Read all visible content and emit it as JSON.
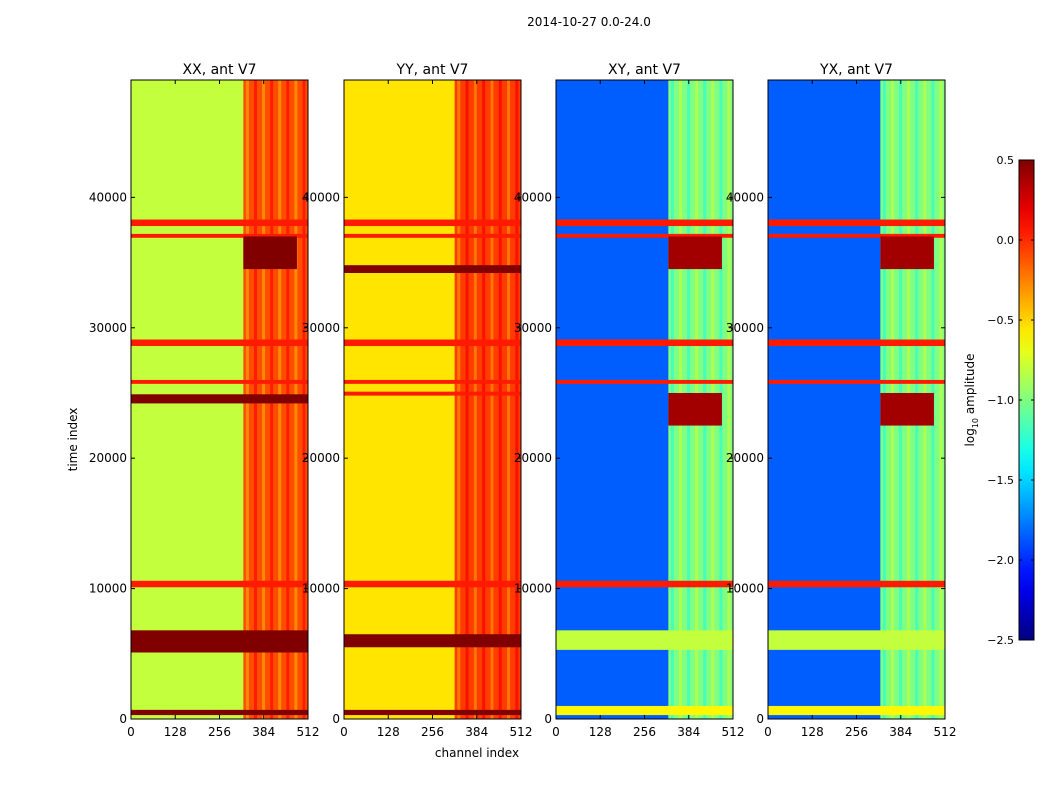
{
  "figure": {
    "suptitle": "2014-10-27 0.0-24.0"
  },
  "chart_data": [
    {
      "type": "heatmap",
      "title": "XX, ant V7",
      "xlabel": "",
      "ylabel": "time index",
      "xlim": [
        0,
        512
      ],
      "ylim": [
        0,
        49000
      ],
      "xticks": [
        0,
        128,
        256,
        384,
        512
      ],
      "yticks": [
        0,
        10000,
        20000,
        30000,
        40000
      ],
      "base_level": -0.8,
      "band_level": -0.1,
      "band_x": [
        325,
        512
      ],
      "flag_rows": [
        {
          "t": [
            37800,
            38300
          ],
          "level": 0.05
        },
        {
          "t": [
            36900,
            37200
          ],
          "level": 0.05
        },
        {
          "t": [
            34500,
            37000
          ],
          "level": 0.5,
          "x": [
            325,
            480
          ]
        },
        {
          "t": [
            28600,
            29100
          ],
          "level": 0.05
        },
        {
          "t": [
            25700,
            26000
          ],
          "level": 0.05
        },
        {
          "t": [
            24200,
            24900
          ],
          "level": 0.5
        },
        {
          "t": [
            10100,
            10600
          ],
          "level": 0.05
        },
        {
          "t": [
            5100,
            6800
          ],
          "level": 0.5
        },
        {
          "t": [
            300,
            700
          ],
          "level": 0.5
        }
      ]
    },
    {
      "type": "heatmap",
      "title": "YY, ant V7",
      "xlabel": "channel index",
      "ylabel": "",
      "xlim": [
        0,
        512
      ],
      "ylim": [
        0,
        49000
      ],
      "xticks": [
        0,
        128,
        256,
        384,
        512
      ],
      "yticks": [
        0,
        10000,
        20000,
        30000,
        40000
      ],
      "base_level": -0.55,
      "band_level": -0.05,
      "band_x": [
        320,
        512
      ],
      "flag_rows": [
        {
          "t": [
            37800,
            38300
          ],
          "level": 0.05
        },
        {
          "t": [
            36900,
            37200
          ],
          "level": 0.05
        },
        {
          "t": [
            34200,
            34800
          ],
          "level": 0.5
        },
        {
          "t": [
            28600,
            29100
          ],
          "level": 0.05
        },
        {
          "t": [
            25700,
            26000
          ],
          "level": 0.05
        },
        {
          "t": [
            24800,
            25100
          ],
          "level": 0.05
        },
        {
          "t": [
            10100,
            10600
          ],
          "level": 0.05
        },
        {
          "t": [
            5500,
            6500
          ],
          "level": 0.5
        },
        {
          "t": [
            300,
            700
          ],
          "level": 0.5
        }
      ]
    },
    {
      "type": "heatmap",
      "title": "XY, ant V7",
      "xlabel": "",
      "ylabel": "",
      "xlim": [
        0,
        512
      ],
      "ylim": [
        0,
        49000
      ],
      "xticks": [
        0,
        128,
        256,
        384,
        512
      ],
      "yticks": [
        0,
        10000,
        20000,
        30000,
        40000
      ],
      "base_level": -1.85,
      "band_level": -1.0,
      "band_x": [
        325,
        512
      ],
      "flag_rows": [
        {
          "t": [
            37800,
            38300
          ],
          "level": 0.05
        },
        {
          "t": [
            36900,
            37200
          ],
          "level": 0.05
        },
        {
          "t": [
            34500,
            37000
          ],
          "level": 0.4,
          "x": [
            325,
            480
          ]
        },
        {
          "t": [
            28600,
            29100
          ],
          "level": 0.05
        },
        {
          "t": [
            25700,
            26000
          ],
          "level": 0.05
        },
        {
          "t": [
            22500,
            25000
          ],
          "level": 0.4,
          "x": [
            325,
            480
          ]
        },
        {
          "t": [
            10100,
            10600
          ],
          "level": 0.05
        },
        {
          "t": [
            5300,
            6800
          ],
          "level": -0.8
        },
        {
          "t": [
            300,
            1000
          ],
          "level": -0.6
        }
      ]
    },
    {
      "type": "heatmap",
      "title": "YX, ant V7",
      "xlabel": "",
      "ylabel": "",
      "xlim": [
        0,
        512
      ],
      "ylim": [
        0,
        49000
      ],
      "xticks": [
        0,
        128,
        256,
        384,
        512
      ],
      "yticks": [
        0,
        10000,
        20000,
        30000,
        40000
      ],
      "base_level": -1.85,
      "band_level": -1.0,
      "band_x": [
        325,
        512
      ],
      "flag_rows": [
        {
          "t": [
            37800,
            38300
          ],
          "level": 0.05
        },
        {
          "t": [
            36900,
            37200
          ],
          "level": 0.05
        },
        {
          "t": [
            34500,
            37000
          ],
          "level": 0.4,
          "x": [
            325,
            480
          ]
        },
        {
          "t": [
            28600,
            29100
          ],
          "level": 0.05
        },
        {
          "t": [
            25700,
            26000
          ],
          "level": 0.05
        },
        {
          "t": [
            22500,
            25000
          ],
          "level": 0.4,
          "x": [
            325,
            480
          ]
        },
        {
          "t": [
            10100,
            10600
          ],
          "level": 0.05
        },
        {
          "t": [
            5300,
            6800
          ],
          "level": -0.8
        },
        {
          "t": [
            300,
            1000
          ],
          "level": -0.6
        }
      ]
    }
  ],
  "colorbar": {
    "label_prefix": "log",
    "label_sub": "10",
    "label_suffix": " amplitude",
    "colormap": "jet",
    "range": [
      -2.5,
      0.5
    ],
    "ticks": [
      0.5,
      0.0,
      -0.5,
      -1.0,
      -1.5,
      -2.0,
      -2.5
    ],
    "tick_labels": [
      "0.5",
      "0.0",
      "−0.5",
      "−1.0",
      "−1.5",
      "−2.0",
      "−2.5"
    ]
  }
}
